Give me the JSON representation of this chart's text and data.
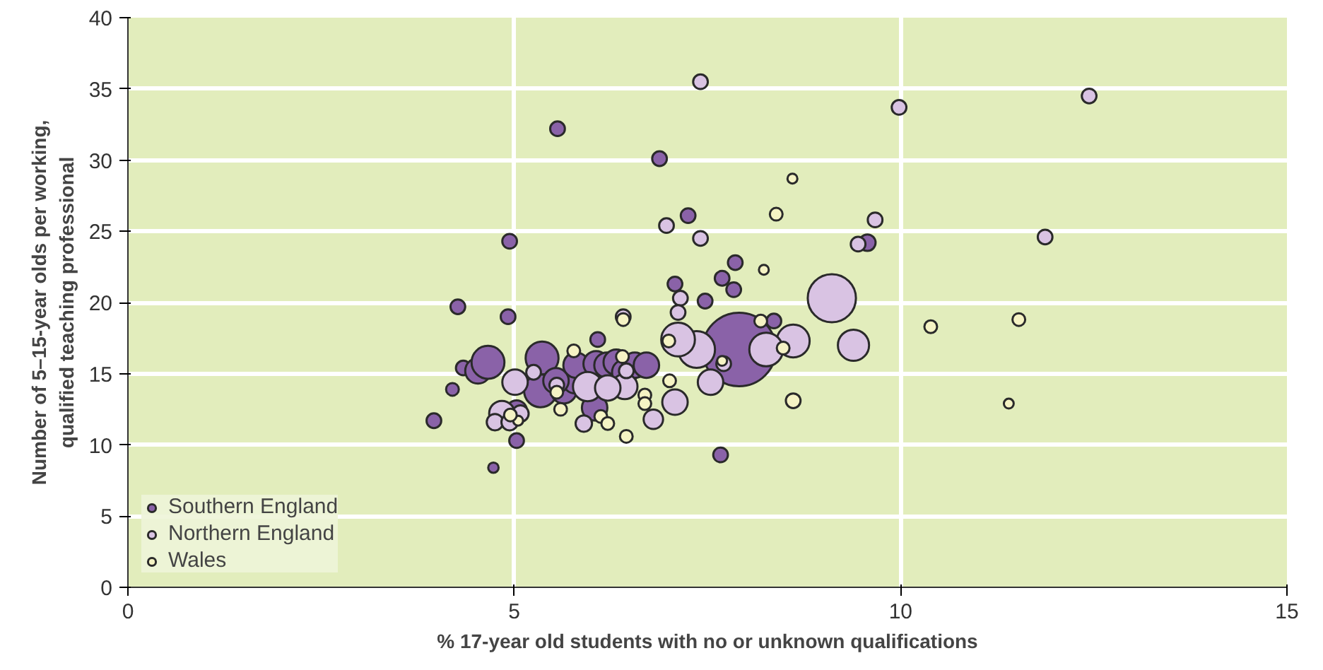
{
  "chart_data": {
    "type": "bubble",
    "xlabel": "% 17-year old students with no or unknown qualifications",
    "ylabel": "Number of 5–15-year olds per working,\nqualified teaching professional",
    "xlim": [
      0,
      15
    ],
    "ylim": [
      0,
      40
    ],
    "xticks": [
      0,
      5,
      10,
      15
    ],
    "yticks": [
      0,
      5,
      10,
      15,
      20,
      25,
      30,
      35,
      40
    ],
    "grid": true,
    "legend": "bottom left",
    "marker": "circle",
    "series": [
      {
        "name": "Southern England",
        "color": "#8a62a8",
        "x": [
          3.96,
          4.27,
          4.2,
          4.34,
          4.53,
          4.66,
          4.92,
          4.94,
          5.03,
          4.73,
          5.03,
          5.36,
          5.34,
          5.56,
          5.64,
          5.79,
          5.8,
          6.08,
          6.04,
          6.06,
          6.2,
          6.32,
          6.43,
          6.56,
          6.71,
          5.54,
          6.88,
          7.25,
          7.08,
          7.86,
          7.69,
          7.84,
          7.47,
          7.91,
          7.67,
          9.57,
          8.36
        ],
        "values": [
          11.7,
          19.7,
          13.9,
          15.4,
          15.2,
          15.8,
          19.0,
          24.3,
          10.3,
          8.4,
          12.4,
          16.1,
          13.8,
          32.2,
          13.8,
          14.5,
          15.6,
          17.4,
          12.6,
          15.7,
          15.6,
          15.8,
          15.1,
          15.6,
          15.6,
          14.5,
          30.1,
          26.1,
          21.3,
          22.8,
          21.7,
          20.9,
          20.1,
          16.7,
          9.3,
          24.2,
          18.7
        ],
        "sizes": [
          0.04,
          0.04,
          0.03,
          0.04,
          0.12,
          0.2,
          0.04,
          0.04,
          0.04,
          0.02,
          0.08,
          0.2,
          0.2,
          0.04,
          0.12,
          0.12,
          0.12,
          0.04,
          0.12,
          0.12,
          0.12,
          0.12,
          0.12,
          0.12,
          0.12,
          0.12,
          0.04,
          0.04,
          0.04,
          0.04,
          0.04,
          0.04,
          0.04,
          1,
          0.04,
          0.05,
          0.04
        ]
      },
      {
        "name": "Northern England",
        "color": "#d9c3e3",
        "x": [
          7.41,
          9.98,
          12.44,
          11.87,
          9.67,
          9.45,
          9.11,
          9.39,
          8.61,
          8.26,
          7.36,
          7.12,
          6.97,
          7.41,
          7.15,
          7.12,
          7.54,
          7.08,
          6.8,
          6.41,
          6.43,
          5.95,
          6.21,
          5.9,
          5.55,
          4.84,
          5.01,
          4.75,
          5.08,
          4.94,
          5.25,
          6.45,
          7.71
        ],
        "values": [
          35.5,
          33.7,
          34.5,
          24.6,
          25.8,
          24.1,
          20.3,
          17.0,
          17.3,
          16.7,
          16.7,
          17.4,
          25.4,
          24.5,
          20.3,
          19.3,
          14.4,
          13.0,
          11.8,
          19.0,
          14.1,
          14.1,
          14.0,
          11.5,
          14.2,
          12.2,
          14.4,
          11.6,
          12.2,
          11.6,
          15.1,
          15.2,
          15.7
        ],
        "sizes": [
          0.04,
          0.04,
          0.04,
          0.04,
          0.04,
          0.04,
          0.43,
          0.18,
          0.2,
          0.21,
          0.25,
          0.21,
          0.04,
          0.04,
          0.04,
          0.04,
          0.12,
          0.12,
          0.07,
          0.04,
          0.12,
          0.16,
          0.12,
          0.05,
          0.04,
          0.12,
          0.12,
          0.05,
          0.05,
          0.05,
          0.04,
          0.04,
          0.04
        ]
      },
      {
        "name": "Wales",
        "color": "#f5f3c4",
        "x": [
          8.6,
          8.39,
          8.23,
          10.39,
          11.53,
          11.4,
          8.61,
          8.19,
          8.48,
          7.0,
          7.69,
          7.01,
          6.69,
          6.69,
          6.4,
          5.77,
          5.55,
          5.6,
          6.12,
          6.21,
          6.45,
          6.41,
          5.05,
          4.95
        ],
        "values": [
          28.7,
          26.2,
          22.3,
          18.3,
          18.8,
          12.9,
          13.1,
          18.7,
          16.8,
          17.3,
          15.9,
          14.5,
          13.5,
          12.9,
          16.2,
          16.6,
          13.7,
          12.5,
          12.0,
          11.5,
          10.6,
          18.8,
          11.7,
          12.1
        ],
        "sizes": [
          0.018,
          0.03,
          0.018,
          0.03,
          0.03,
          0.018,
          0.04,
          0.03,
          0.03,
          0.03,
          0.018,
          0.03,
          0.03,
          0.03,
          0.03,
          0.03,
          0.03,
          0.03,
          0.03,
          0.03,
          0.03,
          0.03,
          0.018,
          0.03
        ]
      }
    ]
  }
}
